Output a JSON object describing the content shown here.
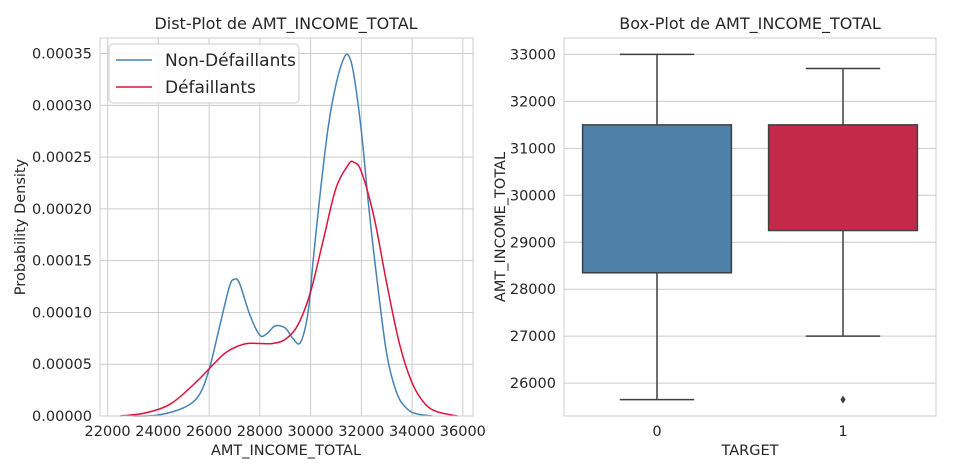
{
  "chart_data": [
    {
      "type": "line",
      "title": "Dist-Plot de AMT_INCOME_TOTAL",
      "xlabel": "AMT_INCOME_TOTAL",
      "ylabel": "Probability Density",
      "xlim": [
        21700,
        36400
      ],
      "ylim": [
        0,
        0.000365
      ],
      "x_ticks": [
        "22000",
        "24000",
        "26000",
        "28000",
        "30000",
        "32000",
        "34000",
        "36000"
      ],
      "y_ticks": [
        "0.00000",
        "0.00005",
        "0.00010",
        "0.00015",
        "0.00020",
        "0.00025",
        "0.00030",
        "0.00035"
      ],
      "legend_position": "top-left",
      "grid": true,
      "series": [
        {
          "name": "Non-Défaillants",
          "color": "#4682b4",
          "x": [
            23000,
            24000,
            25000,
            25600,
            26000,
            26400,
            26800,
            27000,
            27200,
            27600,
            28000,
            28300,
            28600,
            29000,
            29300,
            29600,
            29900,
            30100,
            30400,
            30700,
            31000,
            31300,
            31500,
            31700,
            32000,
            32300,
            32600,
            33000,
            33400,
            33800,
            34200,
            34800
          ],
          "y": [
            0.0,
            1e-06,
            8e-06,
            2e-05,
            4.5e-05,
            8.5e-05,
            0.000125,
            0.000132,
            0.000128,
            9.8e-05,
            7.8e-05,
            8e-05,
            8.7e-05,
            8.5e-05,
            7.5e-05,
            7.1e-05,
            0.0001,
            0.00015,
            0.00022,
            0.00028,
            0.00032,
            0.000345,
            0.000348,
            0.00033,
            0.000275,
            0.0002,
            0.000135,
            6e-05,
            2.2e-05,
            7e-06,
            2e-06,
            0.0
          ]
        },
        {
          "name": "Défaillants",
          "color": "#dc143c",
          "x": [
            22500,
            23500,
            24500,
            25500,
            26500,
            27000,
            27500,
            28000,
            28500,
            29000,
            29500,
            30000,
            30500,
            31000,
            31500,
            31700,
            32000,
            32500,
            33000,
            33500,
            34000,
            34500,
            35000,
            35800
          ],
          "y": [
            0.0,
            3e-06,
            1.2e-05,
            3.3e-05,
            5.8e-05,
            6.6e-05,
            7e-05,
            7e-05,
            7e-05,
            7.4e-05,
            8.8e-05,
            0.00012,
            0.00017,
            0.00022,
            0.000243,
            0.000245,
            0.000236,
            0.000192,
            0.000128,
            7e-05,
            3.2e-05,
            1.2e-05,
            4e-06,
            0.0
          ]
        }
      ]
    },
    {
      "type": "box",
      "title": "Box-Plot de AMT_INCOME_TOTAL",
      "xlabel": "TARGET",
      "ylabel": "AMT_INCOME_TOTAL",
      "ylim": [
        25300,
        33350
      ],
      "y_ticks": [
        "26000",
        "27000",
        "28000",
        "29000",
        "30000",
        "31000",
        "32000",
        "33000"
      ],
      "grid": true,
      "categories": [
        "0",
        "1"
      ],
      "boxes": [
        {
          "category": "0",
          "whislo": 25650,
          "q1": 28350,
          "q3": 31500,
          "whishi": 33000,
          "fliers": [],
          "color": "#4f81a8"
        },
        {
          "category": "1",
          "whislo": 27000,
          "q1": 29250,
          "q3": 31500,
          "whishi": 32700,
          "fliers": [
            25650
          ],
          "color": "#c4294a"
        }
      ]
    }
  ]
}
